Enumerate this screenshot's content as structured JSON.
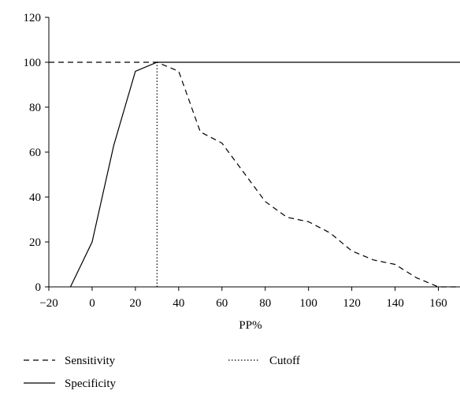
{
  "chart_data": {
    "type": "line",
    "title": "",
    "xlabel": "PP%",
    "ylabel": "",
    "xlim": [
      -20,
      170
    ],
    "ylim": [
      0,
      120
    ],
    "x_ticks": [
      -20,
      0,
      20,
      40,
      60,
      80,
      100,
      120,
      140,
      160
    ],
    "y_ticks": [
      0,
      20,
      40,
      60,
      80,
      100,
      120
    ],
    "x_tick_labels": [
      "−20",
      "0",
      "20",
      "40",
      "60",
      "80",
      "100",
      "120",
      "140",
      "160"
    ],
    "y_tick_labels": [
      "0",
      "20",
      "40",
      "60",
      "80",
      "100",
      "120"
    ],
    "grid": false,
    "legend_position": "bottom",
    "series": [
      {
        "name": "Sensitivity",
        "line_style": "dashed",
        "x": [
          -20,
          30,
          40,
          50,
          60,
          70,
          80,
          90,
          100,
          110,
          120,
          130,
          140,
          150,
          160,
          170
        ],
        "y": [
          100,
          100,
          96,
          69,
          64,
          51,
          38,
          31,
          29,
          24,
          16,
          12,
          10,
          4,
          0,
          0
        ]
      },
      {
        "name": "Specificity",
        "line_style": "solid",
        "x": [
          -10,
          0,
          10,
          20,
          30,
          40,
          170
        ],
        "y": [
          0,
          20,
          63,
          96,
          100,
          100,
          100
        ]
      },
      {
        "name": "Cutoff",
        "line_style": "dotted",
        "x": [
          30,
          30
        ],
        "y": [
          0,
          100
        ]
      }
    ]
  }
}
